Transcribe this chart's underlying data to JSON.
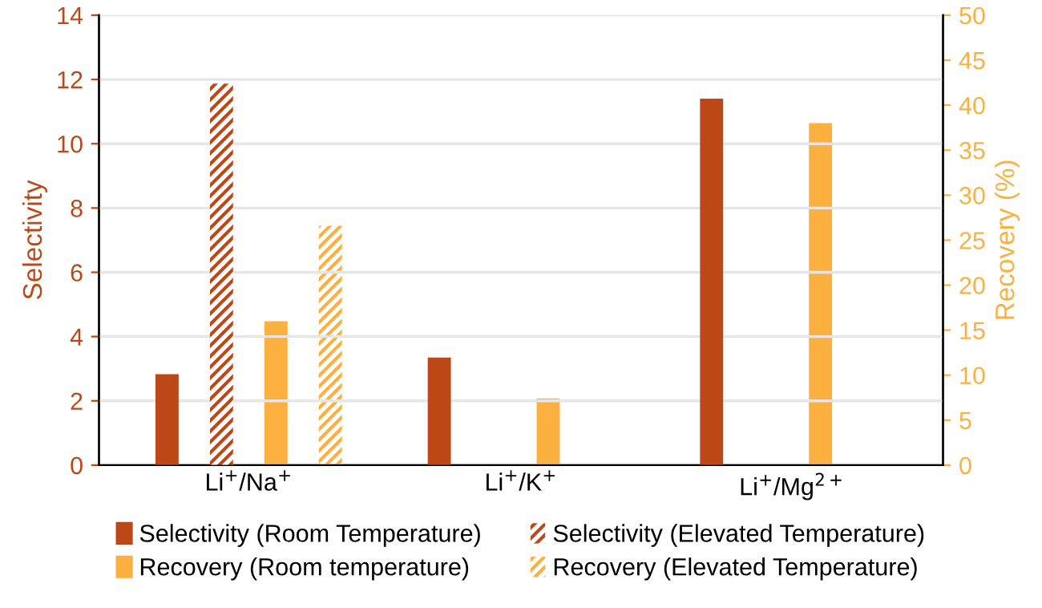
{
  "chart_data": {
    "type": "bar",
    "ylabel": "Selectivity",
    "y2label": "Recovery (%)",
    "categories": [
      "Li$^{+}$/Na$^{+}$",
      "Li$^{+}$/K$^{+}$",
      "Li$^{+}$/Mg$^{2+}$"
    ],
    "series": [
      {
        "name": "Selectivity (Room Temperature)",
        "color": "#bc4818",
        "values": [
          2.83,
          3.35,
          11.4
        ]
      },
      {
        "name": "Selectivity (Elevated Temperature)",
        "color": "#bc4818",
        "values": [
          11.87,
          null,
          null
        ]
      },
      {
        "name": "Recovery (Room temperature)",
        "color": "#fbb040",
        "axis": "y2",
        "values": [
          16.0,
          7.4,
          38.0
        ]
      },
      {
        "name": "Recovery (Elevated Temperature)",
        "color": "#fbb040",
        "axis": "y2",
        "values": [
          26.6,
          null,
          null
        ]
      }
    ],
    "ylim": [
      0,
      14
    ],
    "yticks": [
      0,
      2,
      4,
      6,
      8,
      10,
      12,
      14
    ],
    "y2lim": [
      0,
      50
    ],
    "y2ticks": [
      0,
      5,
      10,
      15,
      20,
      25,
      30,
      35,
      40,
      45,
      50
    ],
    "grid": "y",
    "legend": "bottom"
  }
}
